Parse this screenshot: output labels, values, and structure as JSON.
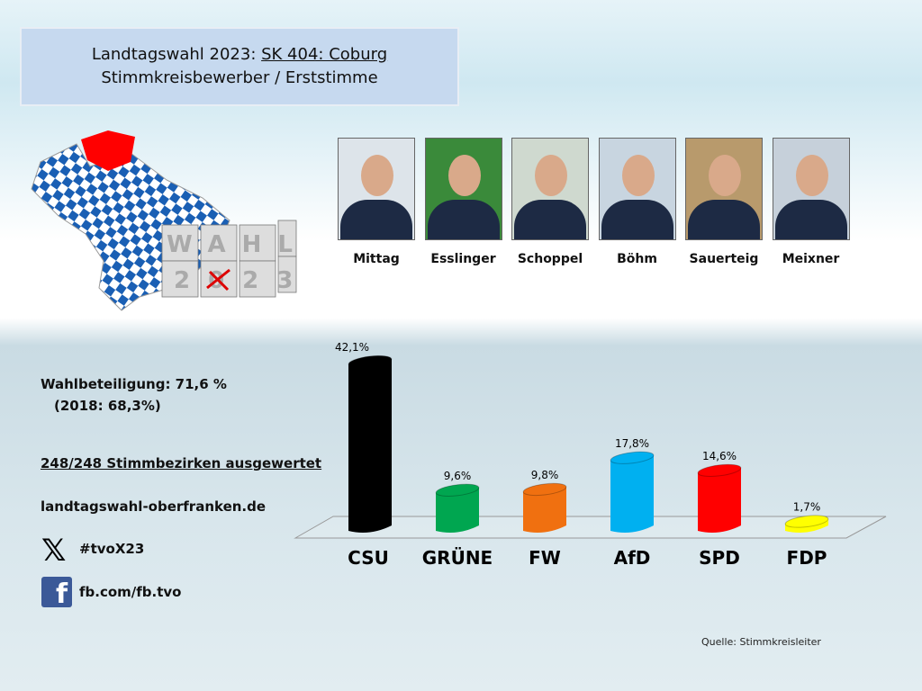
{
  "header": {
    "line1_prefix": "Landtagswahl 2023: ",
    "line1_link": "SK 404: Coburg",
    "line2": "Stimmkreisbewerber / Erststimme"
  },
  "logo": {
    "text_top": "WAHL",
    "text_bottom": "2023"
  },
  "candidates": [
    "Mittag",
    "Esslinger",
    "Schoppel",
    "Böhm",
    "Sauerteig",
    "Meixner"
  ],
  "info": {
    "turnout": "Wahlbeteiligung: 71,6 %",
    "turnout_prev": "(2018: 68,3%)",
    "districts": "248/248 Stimmbezirken ausgewertet",
    "website": "landtagswahl-oberfranken.de",
    "x_handle": "#tvoX23",
    "facebook": "fb.com/fb.tvo"
  },
  "source": "Quelle: Stimmkreisleiter",
  "chart_data": {
    "type": "bar",
    "title": "",
    "categories": [
      "CSU",
      "GRÜNE",
      "FW",
      "AfD",
      "SPD",
      "FDP"
    ],
    "values": [
      42.1,
      9.6,
      9.8,
      17.8,
      14.6,
      1.7
    ],
    "labels": [
      "42,1%",
      "9,6%",
      "9,8%",
      "17,8%",
      "14,6%",
      "1,7%"
    ],
    "colors": [
      "#000000",
      "#00a650",
      "#f07010",
      "#00b0f0",
      "#ff0000",
      "#ffff00"
    ],
    "ylim": [
      0,
      45
    ],
    "grid": false
  }
}
